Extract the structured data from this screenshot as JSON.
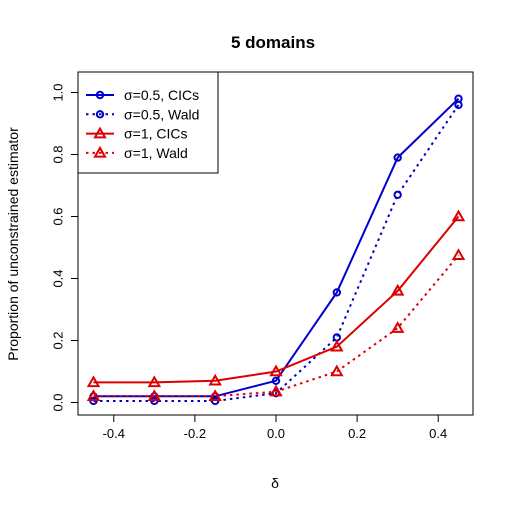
{
  "chart_data": {
    "type": "line",
    "title": "5 domains",
    "xlabel": "δ",
    "ylabel": "Proportion of unconstrained estimator",
    "xlim": [
      -0.45,
      0.45
    ],
    "ylim": [
      0.0,
      1.0
    ],
    "x_ticks": [
      -0.4,
      -0.2,
      0.0,
      0.2,
      0.4
    ],
    "x_tick_labels": [
      "-0.4",
      "-0.2",
      "0.0",
      "0.2",
      "0.4"
    ],
    "y_ticks": [
      0.0,
      0.2,
      0.4,
      0.6,
      0.8,
      1.0
    ],
    "y_tick_labels": [
      "0.0",
      "0.2",
      "0.4",
      "0.6",
      "0.8",
      "1.0"
    ],
    "grid": false,
    "legend_position": "top-left",
    "x": [
      -0.45,
      -0.3,
      -0.15,
      0.0,
      0.15,
      0.3,
      0.45
    ],
    "series": [
      {
        "name": "σ=0.5, CICs",
        "color": "#0000cc",
        "marker": "circle",
        "line": "solid",
        "values": [
          0.02,
          0.02,
          0.02,
          0.07,
          0.355,
          0.79,
          0.98
        ]
      },
      {
        "name": "σ=0.5, Wald",
        "color": "#0000cc",
        "marker": "circle",
        "line": "dotted",
        "values": [
          0.005,
          0.005,
          0.005,
          0.03,
          0.21,
          0.67,
          0.96
        ]
      },
      {
        "name": "σ=1, CICs",
        "color": "#dd0000",
        "marker": "triangle",
        "line": "solid",
        "values": [
          0.065,
          0.065,
          0.07,
          0.1,
          0.18,
          0.36,
          0.6
        ]
      },
      {
        "name": "σ=1, Wald",
        "color": "#dd0000",
        "marker": "triangle",
        "line": "dotted",
        "values": [
          0.02,
          0.02,
          0.02,
          0.035,
          0.1,
          0.24,
          0.475
        ]
      }
    ]
  }
}
